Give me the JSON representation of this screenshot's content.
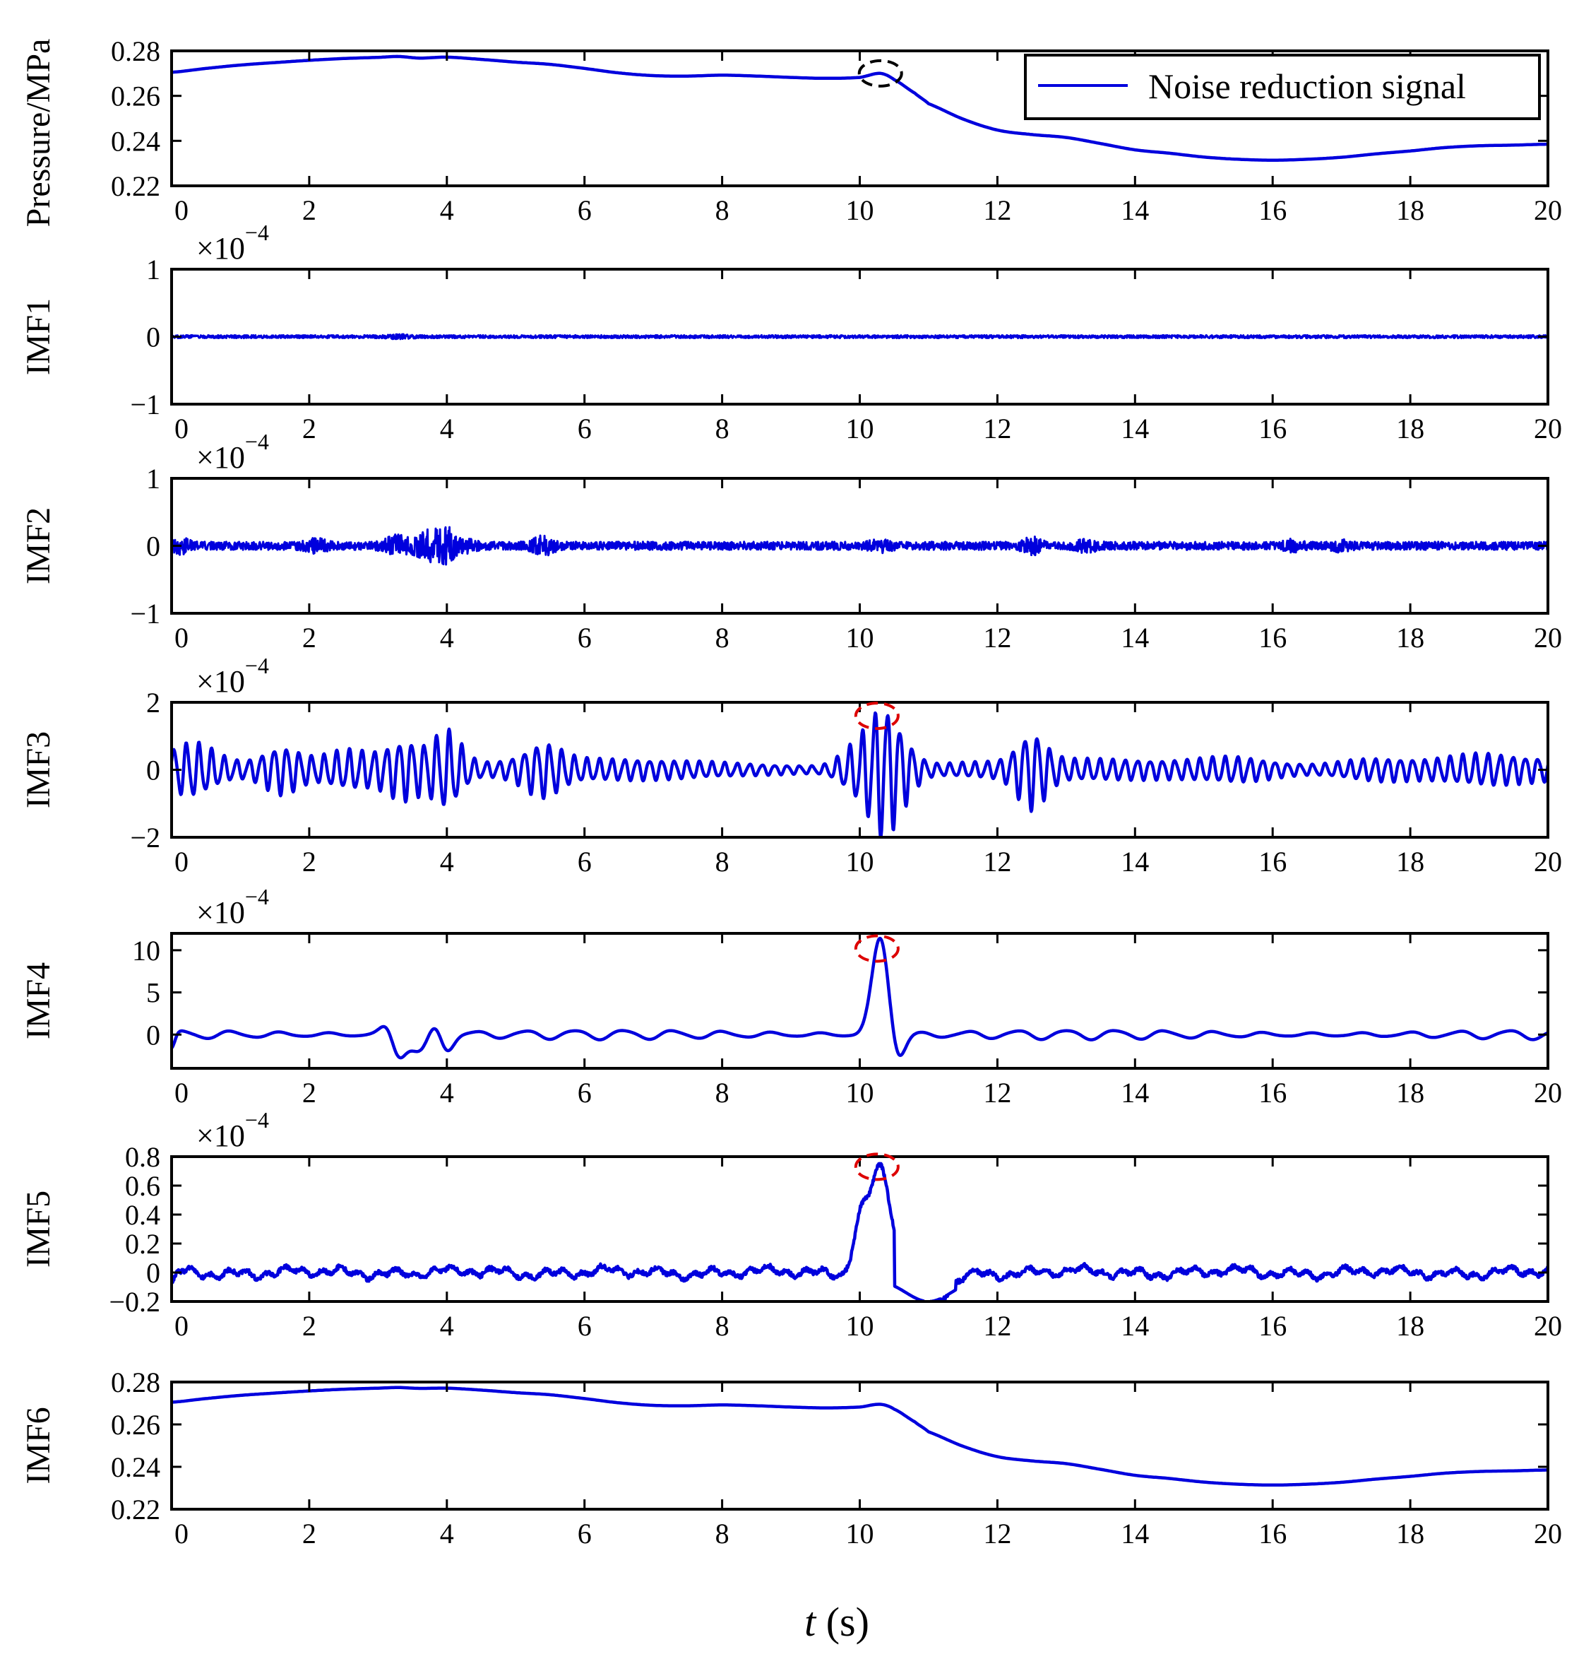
{
  "chart_data": [
    {
      "type": "line",
      "title": "",
      "xlabel": "",
      "ylabel": "Pressure/MPa",
      "xlim": [
        0,
        20
      ],
      "ylim": [
        0.22,
        0.28
      ],
      "xticks": [
        0,
        2,
        4,
        6,
        8,
        10,
        12,
        14,
        16,
        18,
        20
      ],
      "yticks": [
        "0.22",
        "0.24",
        "0.26",
        "0.28"
      ],
      "ytick_values": [
        0.22,
        0.24,
        0.26,
        0.28
      ],
      "legend": {
        "entries": [
          "Noise reduction signal"
        ],
        "position": "top-right"
      },
      "annotation": {
        "type": "dashed-ellipse",
        "color": "#000000",
        "x": 10.3,
        "y": 0.27
      },
      "series": [
        {
          "name": "Noise reduction signal",
          "color": "#0000dd",
          "x": [
            0,
            0.5,
            1,
            1.5,
            2,
            2.5,
            3,
            3.3,
            3.6,
            4,
            4.5,
            5,
            5.5,
            6,
            6.5,
            7,
            7.5,
            8,
            8.5,
            9,
            9.5,
            10,
            10.3,
            10.5,
            10.8,
            11,
            11.5,
            12,
            12.5,
            13,
            13.5,
            14,
            14.5,
            15,
            15.5,
            16,
            16.5,
            17,
            17.5,
            18,
            18.5,
            19,
            19.5,
            20
          ],
          "y": [
            0.2705,
            0.2722,
            0.2737,
            0.2748,
            0.2758,
            0.2766,
            0.2771,
            0.2775,
            0.2768,
            0.2772,
            0.2762,
            0.275,
            0.274,
            0.2722,
            0.2702,
            0.269,
            0.2688,
            0.2692,
            0.2688,
            0.2682,
            0.2678,
            0.2682,
            0.27,
            0.2672,
            0.2612,
            0.2565,
            0.2497,
            0.2448,
            0.2428,
            0.2415,
            0.2388,
            0.236,
            0.2345,
            0.2328,
            0.2318,
            0.2314,
            0.2318,
            0.2327,
            0.2342,
            0.2355,
            0.237,
            0.2378,
            0.2381,
            0.2385
          ]
        }
      ]
    },
    {
      "type": "line",
      "title": "",
      "xlabel": "",
      "ylabel": "IMF1",
      "xlim": [
        0,
        20
      ],
      "ylim": [
        -1,
        1
      ],
      "xticks": [
        0,
        2,
        4,
        6,
        8,
        10,
        12,
        14,
        16,
        18,
        20
      ],
      "yticks": [
        "−1",
        "0",
        "1"
      ],
      "ytick_values": [
        -1,
        0,
        1
      ],
      "y_scale_label": {
        "base": "×10",
        "exponent": "−4"
      },
      "signal": {
        "style": "noise",
        "amplitude": 0.022,
        "bursts": [
          [
            3.3,
            0.02,
            0.12
          ]
        ]
      },
      "series": [
        {
          "name": "IMF1",
          "color": "#0000dd"
        }
      ]
    },
    {
      "type": "line",
      "title": "",
      "xlabel": "",
      "ylabel": "IMF2",
      "xlim": [
        0,
        20
      ],
      "ylim": [
        -1,
        1
      ],
      "xticks": [
        0,
        2,
        4,
        6,
        8,
        10,
        12,
        14,
        16,
        18,
        20
      ],
      "yticks": [
        "−1",
        "0",
        "1"
      ],
      "ytick_values": [
        -1,
        0,
        1
      ],
      "y_scale_label": {
        "base": "×10",
        "exponent": "−4"
      },
      "signal": {
        "style": "noise",
        "amplitude": 0.06,
        "bursts": [
          [
            0.1,
            0.08,
            0.12
          ],
          [
            2.1,
            0.06,
            0.12
          ],
          [
            3.3,
            0.12,
            0.15
          ],
          [
            3.7,
            0.14,
            0.12
          ],
          [
            3.95,
            0.28,
            0.12
          ],
          [
            4.3,
            0.06,
            0.1
          ],
          [
            5.4,
            0.1,
            0.12
          ],
          [
            12.5,
            0.09,
            0.1
          ],
          [
            13.3,
            0.06,
            0.1
          ],
          [
            10.3,
            0.05,
            0.12
          ],
          [
            16.3,
            0.05,
            0.1
          ],
          [
            17.0,
            0.05,
            0.1
          ]
        ]
      },
      "series": [
        {
          "name": "IMF2",
          "color": "#0000dd"
        }
      ]
    },
    {
      "type": "line",
      "title": "",
      "xlabel": "",
      "ylabel": "IMF3",
      "xlim": [
        0,
        20
      ],
      "ylim": [
        -2,
        2
      ],
      "xticks": [
        0,
        2,
        4,
        6,
        8,
        10,
        12,
        14,
        16,
        18,
        20
      ],
      "yticks": [
        "−2",
        "0",
        "2"
      ],
      "ytick_values": [
        -2,
        0,
        2
      ],
      "y_scale_label": {
        "base": "×10",
        "exponent": "−4"
      },
      "annotation": {
        "type": "dashed-ellipse",
        "color": "#dd0000",
        "x": 10.25,
        "y": 1.6
      },
      "signal": {
        "style": "oscillation",
        "frequency": 5.5,
        "base_amplitude": 0.25,
        "bursts": [
          [
            0.3,
            0.5,
            0.3
          ],
          [
            1.6,
            0.5,
            0.25
          ],
          [
            2.6,
            0.45,
            0.4
          ],
          [
            3.4,
            0.65,
            0.25
          ],
          [
            4.0,
            0.9,
            0.2
          ],
          [
            5.4,
            0.5,
            0.25
          ],
          [
            9.9,
            0.45,
            0.2
          ],
          [
            10.3,
            1.45,
            0.2
          ],
          [
            10.6,
            0.6,
            0.2
          ],
          [
            12.5,
            0.8,
            0.2
          ],
          [
            15.5,
            0.2,
            0.5
          ],
          [
            17.5,
            0.2,
            0.5
          ],
          [
            19.0,
            0.2,
            0.5
          ]
        ]
      },
      "series": [
        {
          "name": "IMF3",
          "color": "#0000dd"
        }
      ]
    },
    {
      "type": "line",
      "title": "",
      "xlabel": "",
      "ylabel": "IMF4",
      "xlim": [
        0,
        20
      ],
      "ylim": [
        -4,
        12
      ],
      "xticks": [
        0,
        2,
        4,
        6,
        8,
        10,
        12,
        14,
        16,
        18,
        20
      ],
      "yticks": [
        "0",
        "5",
        "10"
      ],
      "ytick_values": [
        0,
        5,
        10
      ],
      "y_scale_label": {
        "base": "×10",
        "exponent": "−4"
      },
      "annotation": {
        "type": "dashed-ellipse",
        "color": "#dd0000",
        "x": 10.25,
        "y": 10.2
      },
      "signal": {
        "style": "oscillation",
        "frequency": 1.4,
        "base_amplitude": 0.45,
        "peak": {
          "x": 10.3,
          "height": 11.5,
          "width": 0.12
        },
        "dips": [
          [
            10.55,
            -3.2,
            0.1
          ],
          [
            3.6,
            -2.2,
            0.12
          ],
          [
            0.0,
            -1.8,
            0.05
          ]
        ],
        "bursts": [
          [
            3.3,
            2.6,
            0.15
          ],
          [
            3.95,
            1.8,
            0.15
          ]
        ]
      },
      "series": [
        {
          "name": "IMF4",
          "color": "#0000dd"
        }
      ]
    },
    {
      "type": "line",
      "title": "",
      "xlabel": "",
      "ylabel": "IMF5",
      "xlim": [
        0,
        20
      ],
      "ylim": [
        -0.2,
        0.8
      ],
      "xticks": [
        0,
        2,
        4,
        6,
        8,
        10,
        12,
        14,
        16,
        18,
        20
      ],
      "yticks": [
        "−0.2",
        "0",
        "0.2",
        "0.4",
        "0.6",
        "0.8"
      ],
      "ytick_values": [
        -0.2,
        0,
        0.2,
        0.4,
        0.6,
        0.8
      ],
      "y_scale_label": {
        "base": "×10",
        "exponent": "−4"
      },
      "annotation": {
        "type": "dashed-ellipse",
        "color": "#dd0000",
        "x": 10.25,
        "y": 0.73
      },
      "signal": {
        "style": "wiggle",
        "amplitude": 0.035,
        "peak": {
          "x": 10.3,
          "height": 0.72,
          "width": 0.16
        },
        "shoulder": {
          "x": 10.0,
          "height": 0.3,
          "width": 0.1
        },
        "dips": [
          [
            11.0,
            -0.23,
            0.25
          ],
          [
            0.0,
            -0.1,
            0.05
          ]
        ]
      },
      "series": [
        {
          "name": "IMF5",
          "color": "#0000dd"
        }
      ]
    },
    {
      "type": "line",
      "title": "",
      "xlabel": "t (s)",
      "ylabel": "IMF6",
      "xlim": [
        0,
        20
      ],
      "ylim": [
        0.22,
        0.28
      ],
      "xticks": [
        0,
        2,
        4,
        6,
        8,
        10,
        12,
        14,
        16,
        18,
        20
      ],
      "yticks": [
        "0.22",
        "0.24",
        "0.26",
        "0.28"
      ],
      "ytick_values": [
        0.22,
        0.24,
        0.26,
        0.28
      ],
      "series": [
        {
          "name": "IMF6",
          "color": "#0000dd",
          "x": [
            0,
            0.5,
            1,
            1.5,
            2,
            2.5,
            3,
            3.3,
            3.6,
            4,
            4.5,
            5,
            5.5,
            6,
            6.5,
            7,
            7.5,
            8,
            8.5,
            9,
            9.5,
            10,
            10.3,
            10.5,
            10.8,
            11,
            11.5,
            12,
            12.5,
            13,
            13.5,
            14,
            14.5,
            15,
            15.5,
            16,
            16.5,
            17,
            17.5,
            18,
            18.5,
            19,
            19.5,
            20
          ],
          "y": [
            0.2705,
            0.2722,
            0.2737,
            0.2748,
            0.2758,
            0.2766,
            0.2771,
            0.2774,
            0.277,
            0.2771,
            0.2762,
            0.275,
            0.274,
            0.2722,
            0.2702,
            0.269,
            0.2688,
            0.2692,
            0.2688,
            0.2682,
            0.2678,
            0.2682,
            0.2695,
            0.2672,
            0.2612,
            0.2565,
            0.2497,
            0.2448,
            0.2428,
            0.2415,
            0.2388,
            0.236,
            0.2345,
            0.2328,
            0.2318,
            0.2314,
            0.2318,
            0.2327,
            0.2342,
            0.2355,
            0.237,
            0.2378,
            0.2381,
            0.2385
          ]
        }
      ]
    }
  ],
  "labels": {
    "x_axis_italic": "t",
    "x_axis_unit": " (s)",
    "legend_entry": "Noise reduction signal"
  }
}
